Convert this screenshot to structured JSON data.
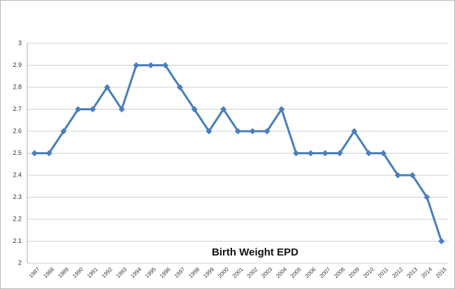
{
  "chart_data": {
    "type": "line",
    "title": "Birth Weight EPD",
    "categories": [
      "1987",
      "1988",
      "1989",
      "1990",
      "1991",
      "1992",
      "1993",
      "1994",
      "1995",
      "1996",
      "1997",
      "1998",
      "1999",
      "2000",
      "2001",
      "2002",
      "2003",
      "2004",
      "2005",
      "2006",
      "2007",
      "2008",
      "2009",
      "2010",
      "2011",
      "2012",
      "2013",
      "2014",
      "2015"
    ],
    "series": [
      {
        "name": "Birth Weight EPD",
        "color": "#4a7ebb",
        "values": [
          2.5,
          2.5,
          2.6,
          2.7,
          2.7,
          2.8,
          2.7,
          2.9,
          2.9,
          2.9,
          2.8,
          2.7,
          2.6,
          2.7,
          2.6,
          2.6,
          2.6,
          2.7,
          2.5,
          2.5,
          2.5,
          2.5,
          2.6,
          2.5,
          2.5,
          2.4,
          2.4,
          2.3,
          2.1
        ]
      }
    ],
    "ylim": [
      2,
      3
    ],
    "yticks": [
      2,
      2.1,
      2.2,
      2.3,
      2.4,
      2.5,
      2.6,
      2.7,
      2.8,
      2.9,
      3
    ],
    "grid": true
  }
}
